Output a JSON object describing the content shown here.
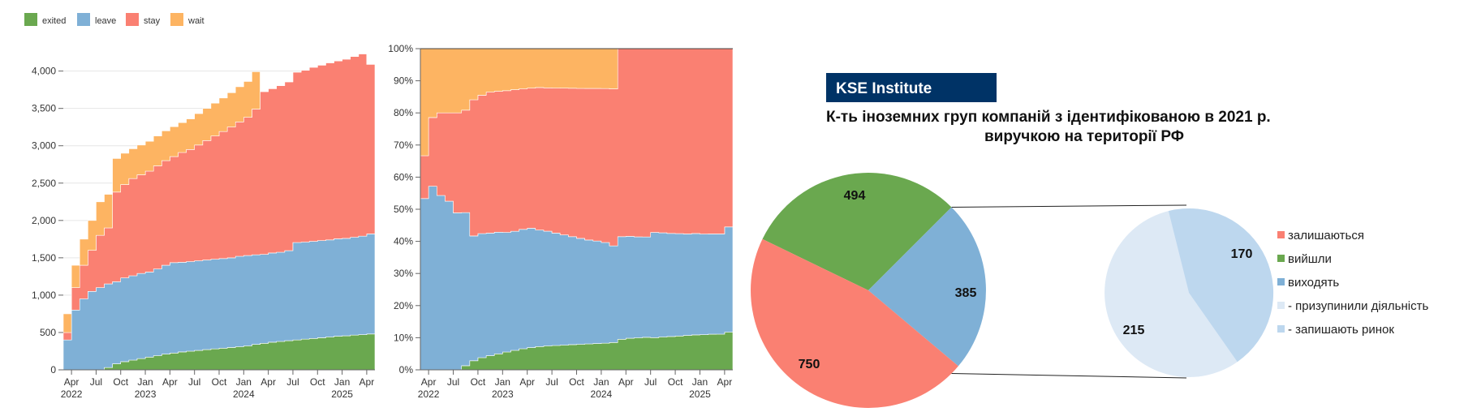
{
  "legend": {
    "items": [
      {
        "label": "exited",
        "color": "#6aa84f"
      },
      {
        "label": "leave",
        "color": "#7fb0d6"
      },
      {
        "label": "stay",
        "color": "#fa8072"
      },
      {
        "label": "wait",
        "color": "#fdb462"
      }
    ]
  },
  "chart_data": [
    {
      "type": "area",
      "stacked": true,
      "x": [
        "2022-03",
        "2022-04",
        "2022-05",
        "2022-06",
        "2022-07",
        "2022-08",
        "2022-09",
        "2022-10",
        "2022-11",
        "2022-12",
        "2023-01",
        "2023-02",
        "2023-03",
        "2023-04",
        "2023-05",
        "2023-06",
        "2023-07",
        "2023-08",
        "2023-09",
        "2023-10",
        "2023-11",
        "2023-12",
        "2024-01",
        "2024-02",
        "2024-03",
        "2024-04",
        "2024-05",
        "2024-06",
        "2024-07",
        "2024-08",
        "2024-09",
        "2024-10",
        "2024-11",
        "2024-12",
        "2025-01",
        "2025-02",
        "2025-03",
        "2025-04",
        "2025-05"
      ],
      "series": [
        {
          "name": "exited",
          "values": [
            0,
            0,
            0,
            0,
            0,
            30,
            80,
            110,
            130,
            150,
            170,
            190,
            210,
            225,
            240,
            250,
            260,
            270,
            280,
            290,
            300,
            310,
            320,
            340,
            355,
            370,
            380,
            390,
            400,
            410,
            420,
            430,
            440,
            450,
            455,
            465,
            470,
            480,
            485
          ]
        },
        {
          "name": "leave",
          "values": [
            400,
            800,
            950,
            1050,
            1100,
            1120,
            1100,
            1120,
            1130,
            1140,
            1140,
            1160,
            1190,
            1210,
            1200,
            1200,
            1200,
            1200,
            1200,
            1200,
            1200,
            1210,
            1210,
            1200,
            1190,
            1195,
            1195,
            1205,
            1305,
            1300,
            1300,
            1300,
            1300,
            1305,
            1305,
            1310,
            1320,
            1340,
            1360
          ]
        },
        {
          "name": "stay",
          "values": [
            100,
            300,
            450,
            550,
            700,
            750,
            1200,
            1250,
            1300,
            1320,
            1350,
            1380,
            1400,
            1420,
            1470,
            1500,
            1550,
            1600,
            1650,
            1700,
            1750,
            1800,
            1850,
            1950,
            2180,
            2200,
            2230,
            2260,
            2280,
            2300,
            2330,
            2350,
            2370,
            2380,
            2400,
            2420,
            2440,
            2270,
            2290
          ]
        },
        {
          "name": "wait",
          "values": [
            250,
            300,
            350,
            400,
            450,
            450,
            450,
            420,
            400,
            400,
            400,
            400,
            400,
            400,
            400,
            410,
            420,
            430,
            440,
            450,
            460,
            470,
            480,
            500,
            0,
            0,
            0,
            0,
            0,
            0,
            0,
            0,
            0,
            0,
            0,
            0,
            0,
            0,
            0
          ]
        }
      ],
      "yticks": [
        "0",
        "500",
        "1,000",
        "1,500",
        "2,000",
        "2,500",
        "3,000",
        "3,500",
        "4,000"
      ],
      "ylim": [
        0,
        4300
      ],
      "xticks": [
        "Apr",
        "Jul",
        "Oct",
        "Jan",
        "Apr",
        "Jul",
        "Oct",
        "Jan",
        "Apr",
        "Jul",
        "Oct",
        "Jan",
        "Apr"
      ],
      "years": [
        "2022",
        "2023",
        "2024",
        "2025"
      ],
      "grid": true,
      "legend": "top-left"
    },
    {
      "type": "area",
      "stacked": true,
      "normalized": true,
      "series_from": 0,
      "yticks": [
        "0%",
        "10%",
        "20%",
        "30%",
        "40%",
        "50%",
        "60%",
        "70%",
        "80%",
        "90%",
        "100%"
      ],
      "ylim": [
        0,
        100
      ],
      "xticks": [
        "Apr",
        "Jul",
        "Oct",
        "Jan",
        "Apr",
        "Jul",
        "Oct",
        "Jan",
        "Apr",
        "Jul",
        "Oct",
        "Jan",
        "Apr"
      ],
      "years": [
        "2022",
        "2023",
        "2024",
        "2025"
      ]
    },
    {
      "type": "pie",
      "header": "KSE Institute",
      "title_line1": "К-ть іноземних груп компаній з ідентифікованою  в 2021 р.",
      "title_line2": "виручкою на території РФ",
      "slices": [
        {
          "label": "залишаються",
          "value": 750,
          "color": "#fa8072"
        },
        {
          "label": "вийшли",
          "value": 494,
          "color": "#6aa84f"
        },
        {
          "label": "виходять",
          "value": 385,
          "color": "#7fb0d6"
        }
      ],
      "breakdown": [
        {
          "label": "- призупинили  діяльність",
          "value": 215,
          "color": "#dde9f5"
        },
        {
          "label": "- запишають  ринок",
          "value": 170,
          "color": "#bdd7ee"
        }
      ],
      "legend": "right"
    }
  ]
}
